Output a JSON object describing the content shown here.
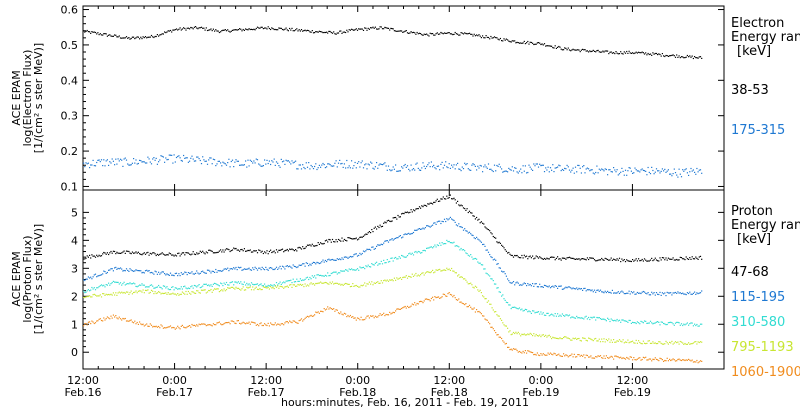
{
  "chart_data": [
    {
      "type": "scatter",
      "panel": "electron",
      "ylabel_lines": [
        "ACE EPAM",
        "log(Electron Flux)",
        "[1/(cm² s ster MeV)]"
      ],
      "legend_title": [
        "Electron",
        "Energy ran",
        "[keV]"
      ],
      "ylim": [
        0.09,
        0.61
      ],
      "yticks": [
        0.1,
        0.2,
        0.3,
        0.4,
        0.5,
        0.6
      ],
      "series": [
        {
          "name": "38-53",
          "color": "#000000",
          "x": [
            0,
            3,
            6,
            9,
            12,
            15,
            18,
            21,
            24,
            27,
            30,
            33,
            36,
            39,
            42,
            45,
            48,
            51,
            54,
            57,
            60,
            63,
            66,
            69,
            72,
            75,
            78,
            81
          ],
          "values": [
            0.54,
            0.53,
            0.52,
            0.525,
            0.545,
            0.55,
            0.54,
            0.545,
            0.55,
            0.545,
            0.54,
            0.535,
            0.545,
            0.55,
            0.54,
            0.53,
            0.535,
            0.53,
            0.52,
            0.51,
            0.505,
            0.49,
            0.485,
            0.48,
            0.48,
            0.475,
            0.47,
            0.465
          ]
        },
        {
          "name": "175-315",
          "color": "#1e78d2",
          "x": [
            0,
            3,
            6,
            9,
            12,
            15,
            18,
            21,
            24,
            27,
            30,
            33,
            36,
            39,
            42,
            45,
            48,
            51,
            54,
            57,
            60,
            63,
            66,
            69,
            72,
            75,
            78,
            81
          ],
          "values": [
            0.165,
            0.17,
            0.17,
            0.175,
            0.18,
            0.175,
            0.17,
            0.165,
            0.17,
            0.165,
            0.16,
            0.165,
            0.165,
            0.16,
            0.155,
            0.16,
            0.16,
            0.155,
            0.155,
            0.15,
            0.155,
            0.15,
            0.15,
            0.145,
            0.145,
            0.145,
            0.14,
            0.145
          ]
        }
      ]
    },
    {
      "type": "scatter",
      "panel": "proton",
      "ylabel_lines": [
        "ACE EPAM",
        "log(Proton Flux)",
        "[1/(cm² s ster MeV)]"
      ],
      "legend_title": [
        "Proton",
        "Energy ran",
        "[keV]"
      ],
      "ylim": [
        -0.6,
        5.8
      ],
      "yticks": [
        0,
        1,
        2,
        3,
        4,
        5
      ],
      "series": [
        {
          "name": "47-68",
          "color": "#000000",
          "x": [
            0,
            4,
            8,
            12,
            16,
            20,
            24,
            28,
            32,
            36,
            40,
            44,
            48,
            52,
            56,
            60,
            64,
            68,
            72,
            76,
            81
          ],
          "values": [
            3.4,
            3.6,
            3.55,
            3.5,
            3.6,
            3.7,
            3.6,
            3.7,
            4.0,
            4.1,
            4.7,
            5.2,
            5.6,
            4.7,
            3.45,
            3.4,
            3.35,
            3.35,
            3.3,
            3.35,
            3.4
          ]
        },
        {
          "name": "115-195",
          "color": "#1e78d2",
          "x": [
            0,
            4,
            8,
            12,
            16,
            20,
            24,
            28,
            32,
            36,
            40,
            44,
            48,
            52,
            56,
            60,
            64,
            68,
            72,
            76,
            81
          ],
          "values": [
            2.6,
            3.0,
            2.9,
            2.8,
            2.9,
            3.0,
            3.0,
            3.1,
            3.3,
            3.5,
            4.0,
            4.4,
            4.8,
            4.0,
            2.5,
            2.4,
            2.3,
            2.2,
            2.15,
            2.1,
            2.15
          ]
        },
        {
          "name": "310-580",
          "color": "#32dcd2",
          "x": [
            0,
            4,
            8,
            12,
            16,
            20,
            24,
            28,
            32,
            36,
            40,
            44,
            48,
            52,
            56,
            60,
            64,
            68,
            72,
            76,
            81
          ],
          "values": [
            2.2,
            2.5,
            2.4,
            2.3,
            2.4,
            2.5,
            2.4,
            2.6,
            2.8,
            3.0,
            3.3,
            3.6,
            4.0,
            3.2,
            1.6,
            1.4,
            1.3,
            1.2,
            1.1,
            1.05,
            1.0
          ]
        },
        {
          "name": "795-1193",
          "color": "#c8e632",
          "x": [
            0,
            4,
            8,
            12,
            16,
            20,
            24,
            28,
            32,
            36,
            40,
            44,
            48,
            52,
            56,
            60,
            64,
            68,
            72,
            76,
            81
          ],
          "values": [
            2.0,
            2.1,
            2.2,
            2.1,
            2.2,
            2.3,
            2.3,
            2.4,
            2.5,
            2.4,
            2.6,
            2.8,
            3.0,
            2.2,
            0.7,
            0.6,
            0.5,
            0.45,
            0.4,
            0.35,
            0.35
          ]
        },
        {
          "name": "1060-1900",
          "color": "#f08c1e",
          "x": [
            0,
            4,
            8,
            12,
            16,
            20,
            24,
            28,
            32,
            36,
            40,
            44,
            48,
            52,
            56,
            60,
            64,
            68,
            72,
            76,
            81
          ],
          "values": [
            1.0,
            1.3,
            1.0,
            0.9,
            1.0,
            1.1,
            1.0,
            1.1,
            1.6,
            1.2,
            1.4,
            1.8,
            2.1,
            1.4,
            0.1,
            -0.05,
            -0.1,
            -0.15,
            -0.2,
            -0.25,
            -0.3
          ]
        }
      ]
    }
  ],
  "x_axis": {
    "xlim": [
      0,
      84
    ],
    "ticks": [
      {
        "x": 0,
        "time": "12:00",
        "date": "Feb.16"
      },
      {
        "x": 12,
        "time": "0:00",
        "date": "Feb.17"
      },
      {
        "x": 24,
        "time": "12:00",
        "date": "Feb.17"
      },
      {
        "x": 36,
        "time": "0:00",
        "date": "Feb.18"
      },
      {
        "x": 48,
        "time": "12:00",
        "date": "Feb.18"
      },
      {
        "x": 60,
        "time": "0:00",
        "date": "Feb.19"
      },
      {
        "x": 72,
        "time": "12:00",
        "date": "Feb.19"
      }
    ],
    "xlabel": "hours:minutes, Feb. 16, 2011 - Feb. 19, 2011"
  }
}
